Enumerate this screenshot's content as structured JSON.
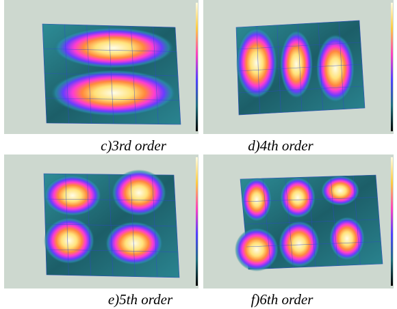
{
  "figure": {
    "panels": [
      {
        "caption": "c)3rd order"
      },
      {
        "caption": "d)4th order"
      },
      {
        "caption": "e)5th order"
      },
      {
        "caption": "f)6th order"
      }
    ]
  }
}
